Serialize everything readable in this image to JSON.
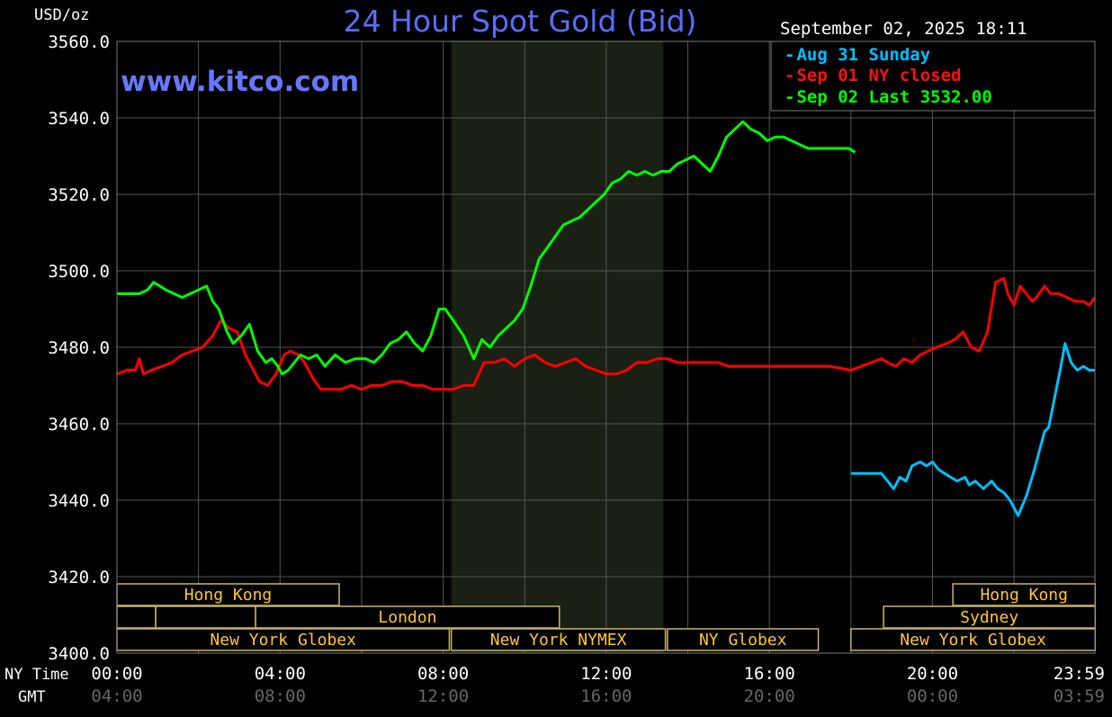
{
  "header": {
    "units": "USD/oz",
    "title": "24 Hour Spot Gold (Bid)",
    "timestamp": "September 02, 2025 18:11",
    "watermark": "www.kitco.com"
  },
  "legend": {
    "placement": "top-right",
    "items": [
      {
        "label": "Aug 31 Sunday",
        "color": "#00bfff"
      },
      {
        "label": "Sep 01 NY closed",
        "color": "#ff0000"
      },
      {
        "label": "Sep 02 Last 3532.00",
        "color": "#00ff00"
      }
    ]
  },
  "axis": {
    "ny_time_label": "NY Time",
    "gmt_label": "GMT",
    "x_ticks_ny": [
      "00:00",
      "04:00",
      "08:00",
      "12:00",
      "16:00",
      "20:00",
      "23:59"
    ],
    "x_ticks_gmt": [
      "04:00",
      "08:00",
      "12:00",
      "16:00",
      "20:00",
      "00:00",
      "03:59"
    ],
    "y_ticks": [
      "3560.0",
      "3540.0",
      "3520.0",
      "3500.0",
      "3480.0",
      "3460.0",
      "3440.0",
      "3420.0",
      "3400.0"
    ]
  },
  "sessions": [
    {
      "label": "Hong Kong",
      "start": 0,
      "end": 5.45,
      "row": 0
    },
    {
      "label": "Hong Kong",
      "start": 20.5,
      "end": 23.99,
      "row": 0
    },
    {
      "label": "",
      "start": 0,
      "end": 0.95,
      "row": 1
    },
    {
      "label": "",
      "start": 0.95,
      "end": 3.4,
      "row": 1
    },
    {
      "label": "London",
      "start": 3.4,
      "end": 10.85,
      "row": 1
    },
    {
      "label": "Sydney",
      "start": 18.8,
      "end": 23.99,
      "row": 1
    },
    {
      "label": "New York Globex",
      "start": 0,
      "end": 8.15,
      "row": 2
    },
    {
      "label": "New York NYMEX",
      "start": 8.2,
      "end": 13.45,
      "row": 2
    },
    {
      "label": "NY Globex",
      "start": 13.5,
      "end": 17.2,
      "row": 2
    },
    {
      "label": "New York Globex",
      "start": 18.0,
      "end": 23.99,
      "row": 2
    }
  ],
  "chart_data": {
    "type": "line",
    "title": "24 Hour Spot Gold (Bid)",
    "ylabel": "USD/oz",
    "xlabel": "NY Time",
    "xlim": [
      0,
      23.983
    ],
    "ylim": [
      3400,
      3560
    ],
    "y_tick_step": 20,
    "x_tick_step_hours": 4,
    "grid": true,
    "shaded_region_hours": [
      8.2,
      13.4
    ],
    "series": [
      {
        "name": "Aug 31 Sunday",
        "color": "#00bfff",
        "x": [
          18.0,
          18.75,
          18.9,
          19.05,
          19.2,
          19.35,
          19.5,
          19.7,
          19.85,
          20.0,
          20.15,
          20.3,
          20.45,
          20.6,
          20.8,
          20.9,
          21.05,
          21.25,
          21.45,
          21.6,
          21.75,
          21.9,
          22.1,
          22.3,
          22.5,
          22.6,
          22.75,
          22.85,
          23.0,
          23.15,
          23.25,
          23.4,
          23.55,
          23.7,
          23.85,
          23.98
        ],
        "y": [
          3447,
          3447,
          3445,
          3443,
          3446,
          3445,
          3449,
          3450,
          3449,
          3450,
          3448,
          3447,
          3446,
          3445,
          3446,
          3444,
          3445,
          3443,
          3445,
          3443,
          3442,
          3440,
          3436,
          3441,
          3448,
          3452,
          3458,
          3459,
          3467,
          3475,
          3481,
          3476,
          3474,
          3475,
          3474,
          3474
        ]
      },
      {
        "name": "Sep 01 NY closed",
        "color": "#ff0000",
        "x": [
          0.0,
          0.25,
          0.45,
          0.55,
          0.65,
          0.85,
          1.1,
          1.35,
          1.6,
          1.85,
          2.1,
          2.35,
          2.55,
          2.75,
          2.95,
          3.15,
          3.35,
          3.5,
          3.7,
          3.9,
          4.1,
          4.25,
          4.45,
          4.6,
          4.8,
          5.0,
          5.25,
          5.5,
          5.75,
          6.0,
          6.25,
          6.5,
          6.75,
          7.0,
          7.25,
          7.5,
          7.75,
          8.0,
          8.25,
          8.5,
          8.75,
          9.0,
          9.25,
          9.5,
          9.75,
          10.0,
          10.25,
          10.5,
          10.75,
          11.0,
          11.25,
          11.5,
          11.75,
          12.0,
          12.25,
          12.5,
          12.75,
          13.0,
          13.25,
          13.5,
          13.75,
          14.0,
          14.25,
          14.5,
          14.75,
          15.0,
          15.5,
          16.0,
          16.5,
          17.0,
          17.5,
          18.0,
          18.25,
          18.5,
          18.75,
          18.9,
          19.1,
          19.3,
          19.5,
          19.7,
          19.9,
          20.1,
          20.35,
          20.55,
          20.75,
          20.95,
          21.15,
          21.35,
          21.55,
          21.75,
          21.85,
          22.0,
          22.15,
          22.3,
          22.45,
          22.55,
          22.75,
          22.9,
          23.1,
          23.3,
          23.5,
          23.7,
          23.85,
          23.98
        ],
        "y": [
          3473,
          3474,
          3474,
          3477,
          3473,
          3474,
          3475,
          3476,
          3478,
          3479,
          3480,
          3483,
          3487,
          3485,
          3484,
          3478,
          3474,
          3471,
          3470,
          3473,
          3478,
          3479,
          3478,
          3476,
          3472,
          3469,
          3469,
          3469,
          3470,
          3469,
          3470,
          3470,
          3471,
          3471,
          3470,
          3470,
          3469,
          3469,
          3469,
          3470,
          3470,
          3476,
          3476,
          3477,
          3475,
          3477,
          3478,
          3476,
          3475,
          3476,
          3477,
          3475,
          3474,
          3473,
          3473,
          3474,
          3476,
          3476,
          3477,
          3477,
          3476,
          3476,
          3476,
          3476,
          3476,
          3475,
          3475,
          3475,
          3475,
          3475,
          3475,
          3474,
          3475,
          3476,
          3477,
          3476,
          3475,
          3477,
          3476,
          3478,
          3479,
          3480,
          3481,
          3482,
          3484,
          3480,
          3479,
          3484,
          3497,
          3498,
          3494,
          3491,
          3496,
          3494,
          3492,
          3493,
          3496,
          3494,
          3494,
          3493,
          3492,
          3492,
          3491,
          3493
        ]
      },
      {
        "name": "Sep 02 Last 3532.00",
        "color": "#00ff00",
        "x": [
          0.0,
          0.3,
          0.55,
          0.75,
          0.9,
          1.05,
          1.2,
          1.4,
          1.6,
          1.8,
          2.0,
          2.2,
          2.35,
          2.5,
          2.7,
          2.85,
          3.05,
          3.25,
          3.45,
          3.65,
          3.8,
          3.95,
          4.05,
          4.2,
          4.35,
          4.5,
          4.7,
          4.9,
          5.1,
          5.35,
          5.6,
          5.85,
          6.1,
          6.3,
          6.5,
          6.7,
          6.9,
          7.1,
          7.3,
          7.5,
          7.7,
          7.9,
          8.05,
          8.25,
          8.5,
          8.75,
          8.95,
          9.15,
          9.35,
          9.55,
          9.75,
          9.95,
          10.15,
          10.35,
          10.55,
          10.75,
          10.95,
          11.15,
          11.35,
          11.55,
          11.75,
          11.95,
          12.15,
          12.35,
          12.55,
          12.75,
          12.95,
          13.15,
          13.35,
          13.55,
          13.75,
          13.95,
          14.15,
          14.35,
          14.55,
          14.75,
          14.95,
          15.15,
          15.35,
          15.55,
          15.75,
          15.95,
          16.15,
          16.35,
          16.55,
          16.75,
          16.95,
          17.15,
          17.35,
          17.55,
          17.75,
          17.95,
          18.1
        ],
        "y": [
          3494,
          3494,
          3494,
          3495,
          3497,
          3496,
          3495,
          3494,
          3493,
          3494,
          3495,
          3496,
          3492,
          3490,
          3484,
          3481,
          3483,
          3486,
          3479,
          3476,
          3477,
          3475,
          3473,
          3474,
          3476,
          3478,
          3477,
          3478,
          3475,
          3478,
          3476,
          3477,
          3477,
          3476,
          3478,
          3481,
          3482,
          3484,
          3481,
          3479,
          3483,
          3490,
          3490,
          3487,
          3483,
          3477,
          3482,
          3480,
          3483,
          3485,
          3487,
          3490,
          3496,
          3503,
          3506,
          3509,
          3512,
          3513,
          3514,
          3516,
          3518,
          3520,
          3523,
          3524,
          3526,
          3525,
          3526,
          3525,
          3526,
          3526,
          3528,
          3529,
          3530,
          3528,
          3526,
          3530,
          3535,
          3537,
          3539,
          3537,
          3536,
          3534,
          3535,
          3535,
          3534,
          3533,
          3532,
          3532,
          3532,
          3532,
          3532,
          3532,
          3531
        ]
      }
    ]
  }
}
